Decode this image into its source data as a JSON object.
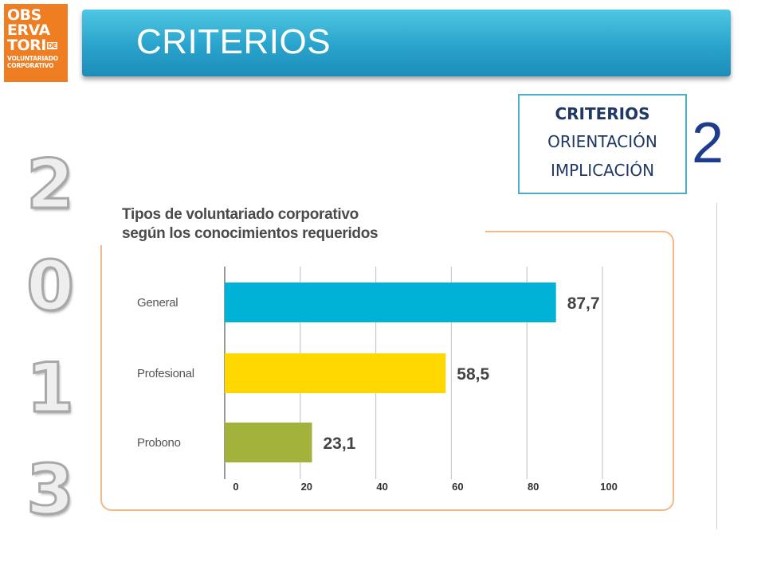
{
  "logo": {
    "line1": "OBS",
    "line2": "ERVA",
    "line3": "TORI",
    "de": "DE",
    "sub1": "VOLUNTARIADO",
    "sub2": "CORPORATIVO"
  },
  "header": {
    "title": "CRITERIOS"
  },
  "criteria": {
    "heading": "CRITERIOS",
    "item1": "ORIENTACIÓN",
    "item2": "IMPLICACIÓN",
    "number": "2"
  },
  "year_digits": [
    "2",
    "0",
    "1",
    "3"
  ],
  "chart_data": {
    "type": "bar",
    "orientation": "horizontal",
    "title_line1": "Tipos de voluntariado corporativo",
    "title_line2": "según los conocimientos requeridos",
    "categories": [
      "General",
      "Profesional",
      "Probono"
    ],
    "values": [
      87.7,
      58.5,
      23.1
    ],
    "value_labels": [
      "87,7",
      "58,5",
      "23,1"
    ],
    "colors": [
      "#00b3d6",
      "#fed800",
      "#a3b23a"
    ],
    "xlim": [
      0,
      100
    ],
    "xticks": [
      "0",
      "20",
      "40",
      "60",
      "80",
      "100"
    ],
    "grid": true
  }
}
